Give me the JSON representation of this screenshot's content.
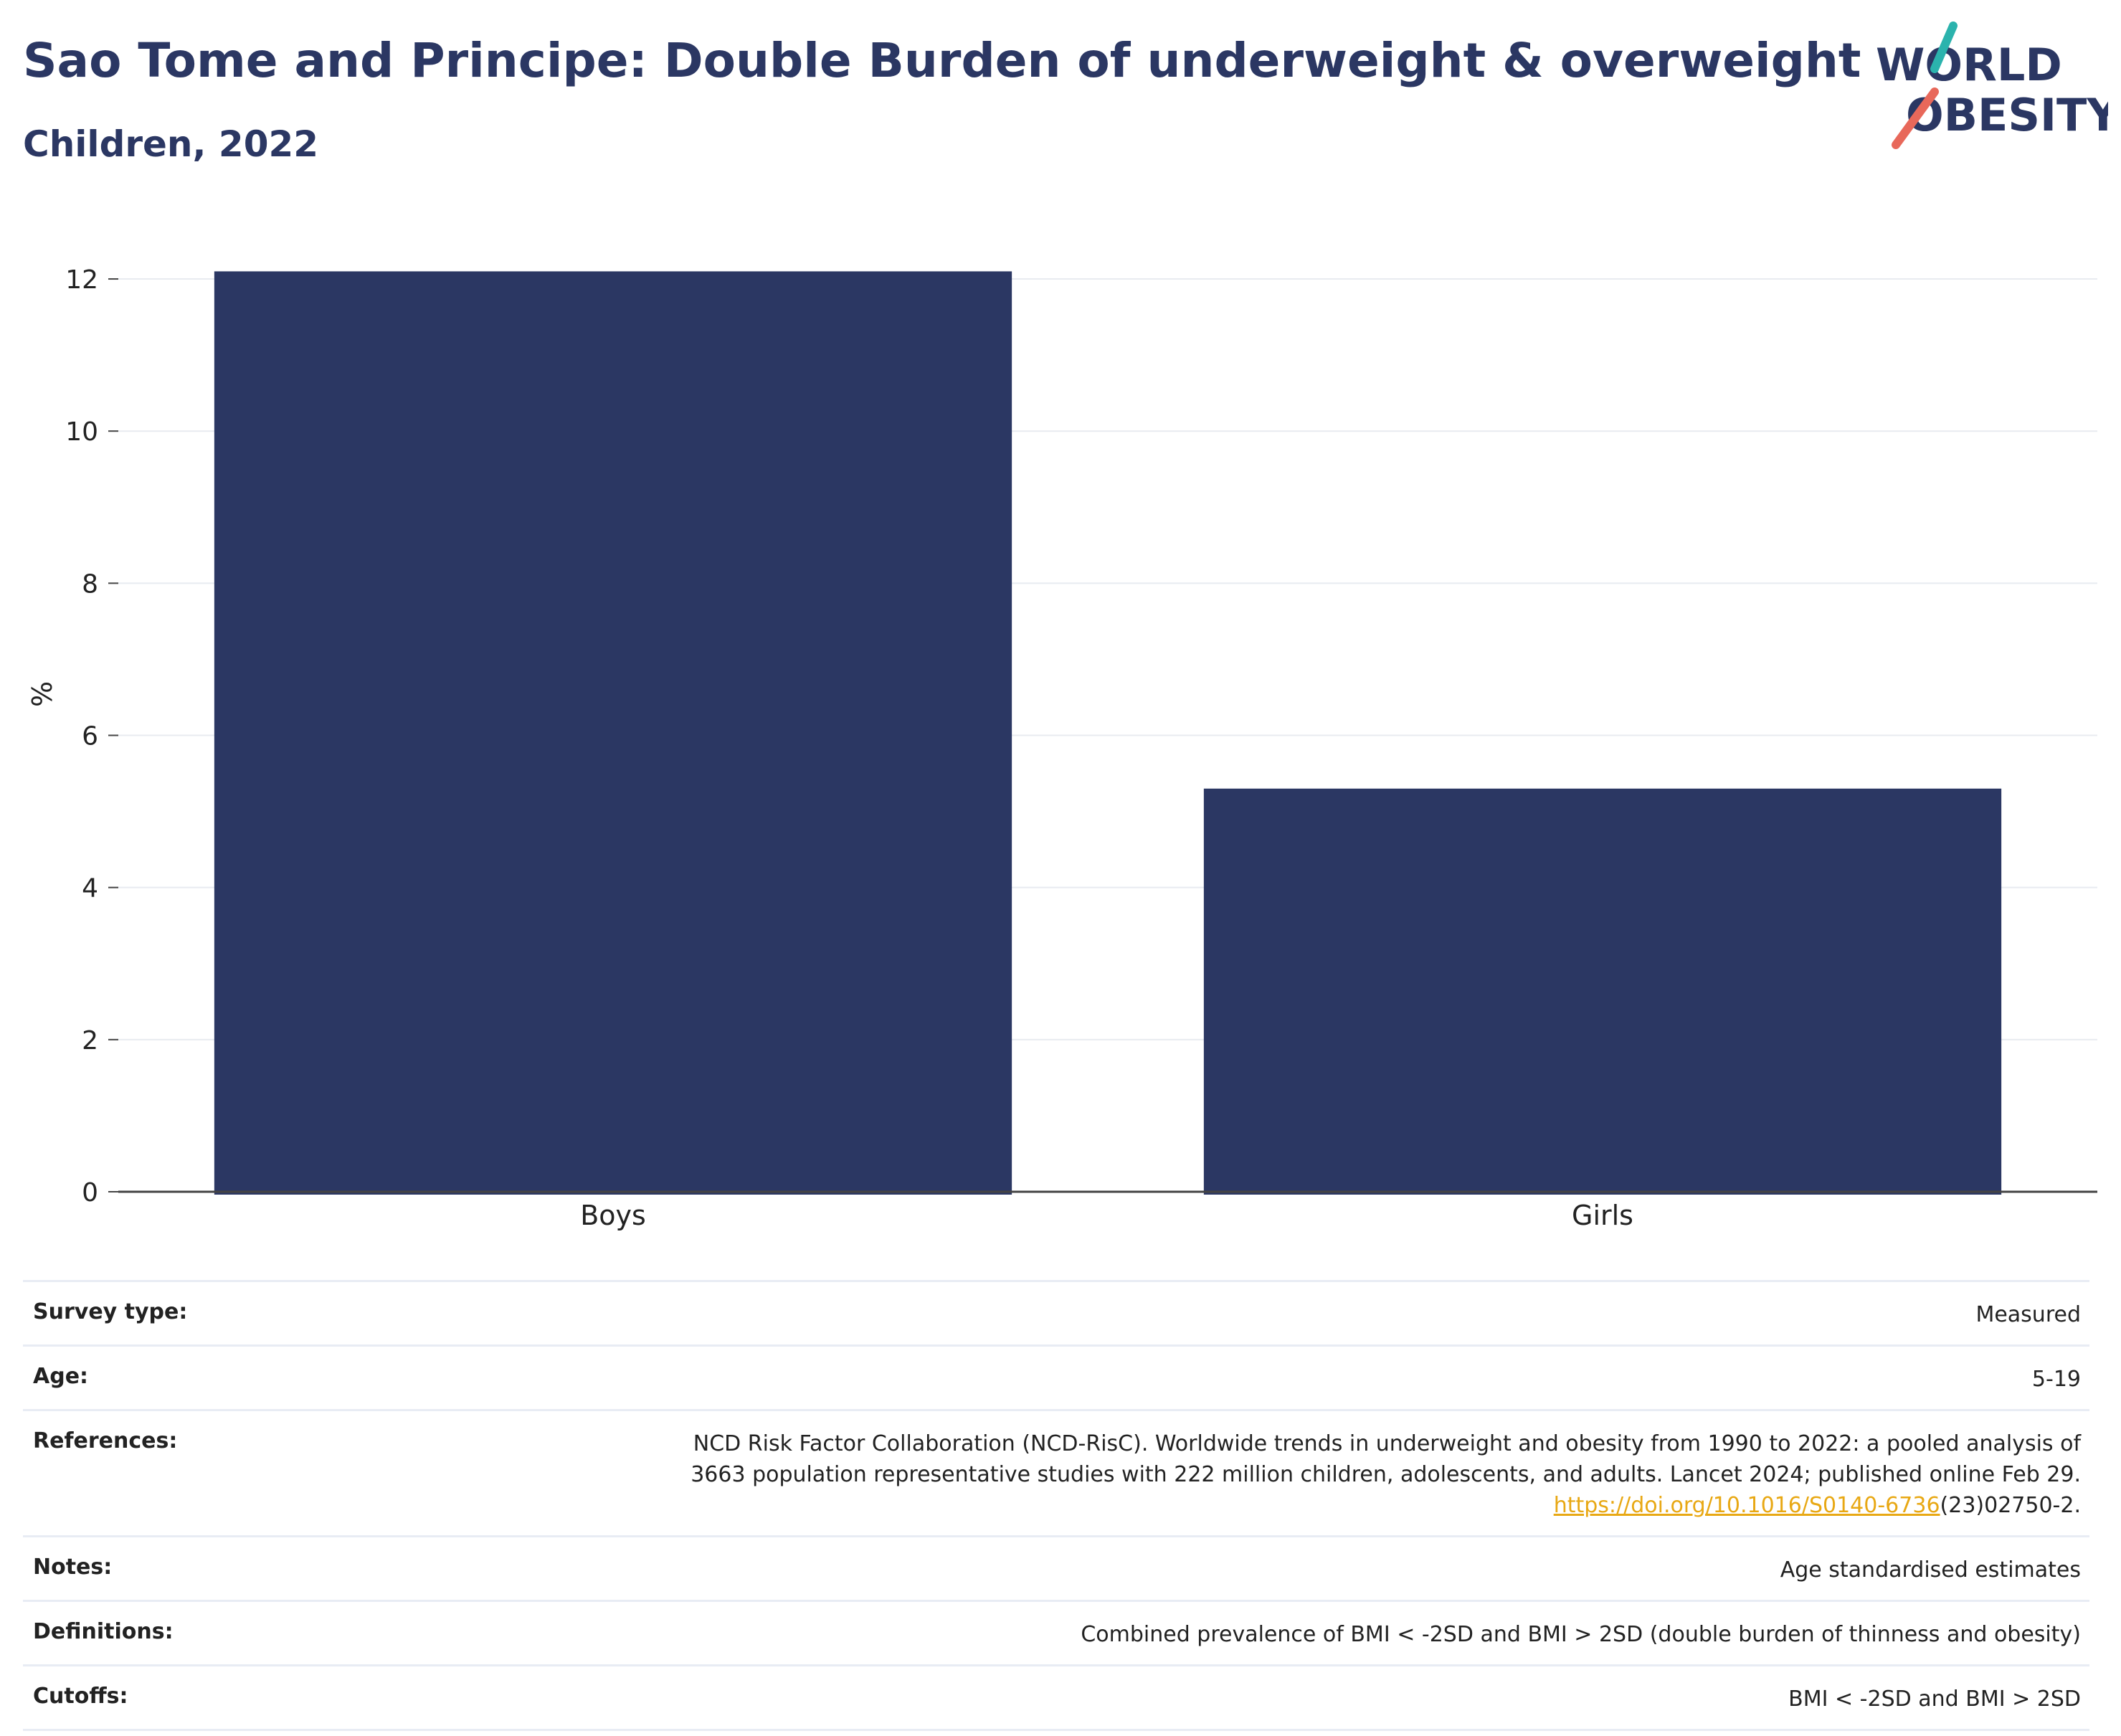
{
  "header": {
    "title": "Sao Tome and Principe: Double Burden of underweight & overweight",
    "subtitle": "Children, 2022"
  },
  "logo": {
    "line1": "WORLD",
    "line2": "OBESITY",
    "accent_teal": "#2bb3ad",
    "accent_coral": "#e8685a"
  },
  "chart_data": {
    "type": "bar",
    "categories": [
      "Boys",
      "Girls"
    ],
    "values": [
      12.1,
      5.3
    ],
    "title": "Sao Tome and Principe: Double Burden of underweight & overweight",
    "subtitle": "Children, 2022",
    "xlabel": "",
    "ylabel": "%",
    "ylim": [
      0,
      12.5
    ],
    "yticks": [
      0,
      2,
      4,
      6,
      8,
      10,
      12
    ],
    "grid": true,
    "bar_color": "#2b3763"
  },
  "info": {
    "survey_type": {
      "label": "Survey type:",
      "value": "Measured"
    },
    "age": {
      "label": "Age:",
      "value": "5-19"
    },
    "references": {
      "label": "References:",
      "line1": "NCD Risk Factor Collaboration (NCD-RisC). Worldwide trends in underweight and obesity from 1990 to 2022: a pooled analysis of",
      "line2": "3663 population representative studies with 222 million children, adolescents, and adults. Lancet 2024; published online Feb 29.",
      "link": "https://doi.org/10.1016/S0140-6736",
      "link_suffix": "(23)02750-2."
    },
    "notes": {
      "label": "Notes:",
      "value": "Age standardised estimates"
    },
    "definitions": {
      "label": "Definitions:",
      "value": "Combined prevalence of BMI < -2SD and BMI > 2SD (double burden of thinness and obesity)"
    },
    "cutoffs": {
      "label": "Cutoffs:",
      "value": "BMI < -2SD and BMI > 2SD"
    }
  }
}
